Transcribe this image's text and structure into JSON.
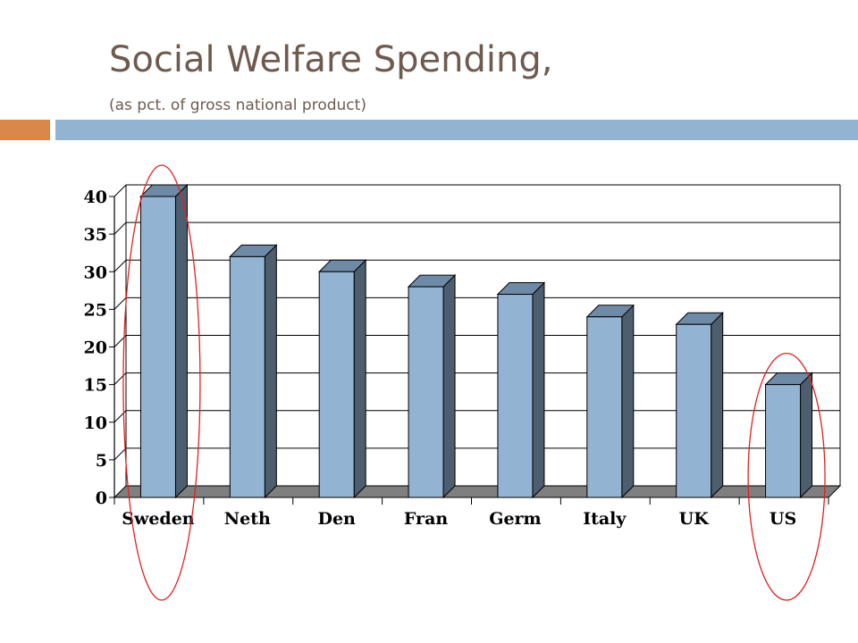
{
  "header": {
    "title": "Social Welfare Spending,",
    "subtitle": "(as pct. of gross national product)"
  },
  "colors": {
    "title": "#6f5a4e",
    "accent_orange": "#d9874a",
    "accent_blue": "#93b3d3",
    "bar_front": "#93b3d3",
    "bar_side": "#4d5e6f",
    "bar_top": "#6f8aa6",
    "floor": "#7f7f7f",
    "highlight_ring": "#e02020"
  },
  "chart_data": {
    "type": "bar",
    "title": "",
    "xlabel": "",
    "ylabel": "",
    "categories": [
      "Sweden",
      "Neth",
      "Den",
      "Fran",
      "Germ",
      "Italy",
      "UK",
      "US"
    ],
    "values": [
      40,
      32,
      30,
      28,
      27,
      24,
      23,
      15
    ],
    "ylim": [
      0,
      40
    ],
    "yticks": [
      "0",
      "5",
      "10",
      "15",
      "20",
      "25",
      "30",
      "35",
      "40"
    ],
    "grid": true,
    "style": "3d-column",
    "highlighted_categories": [
      "Sweden",
      "US"
    ]
  }
}
